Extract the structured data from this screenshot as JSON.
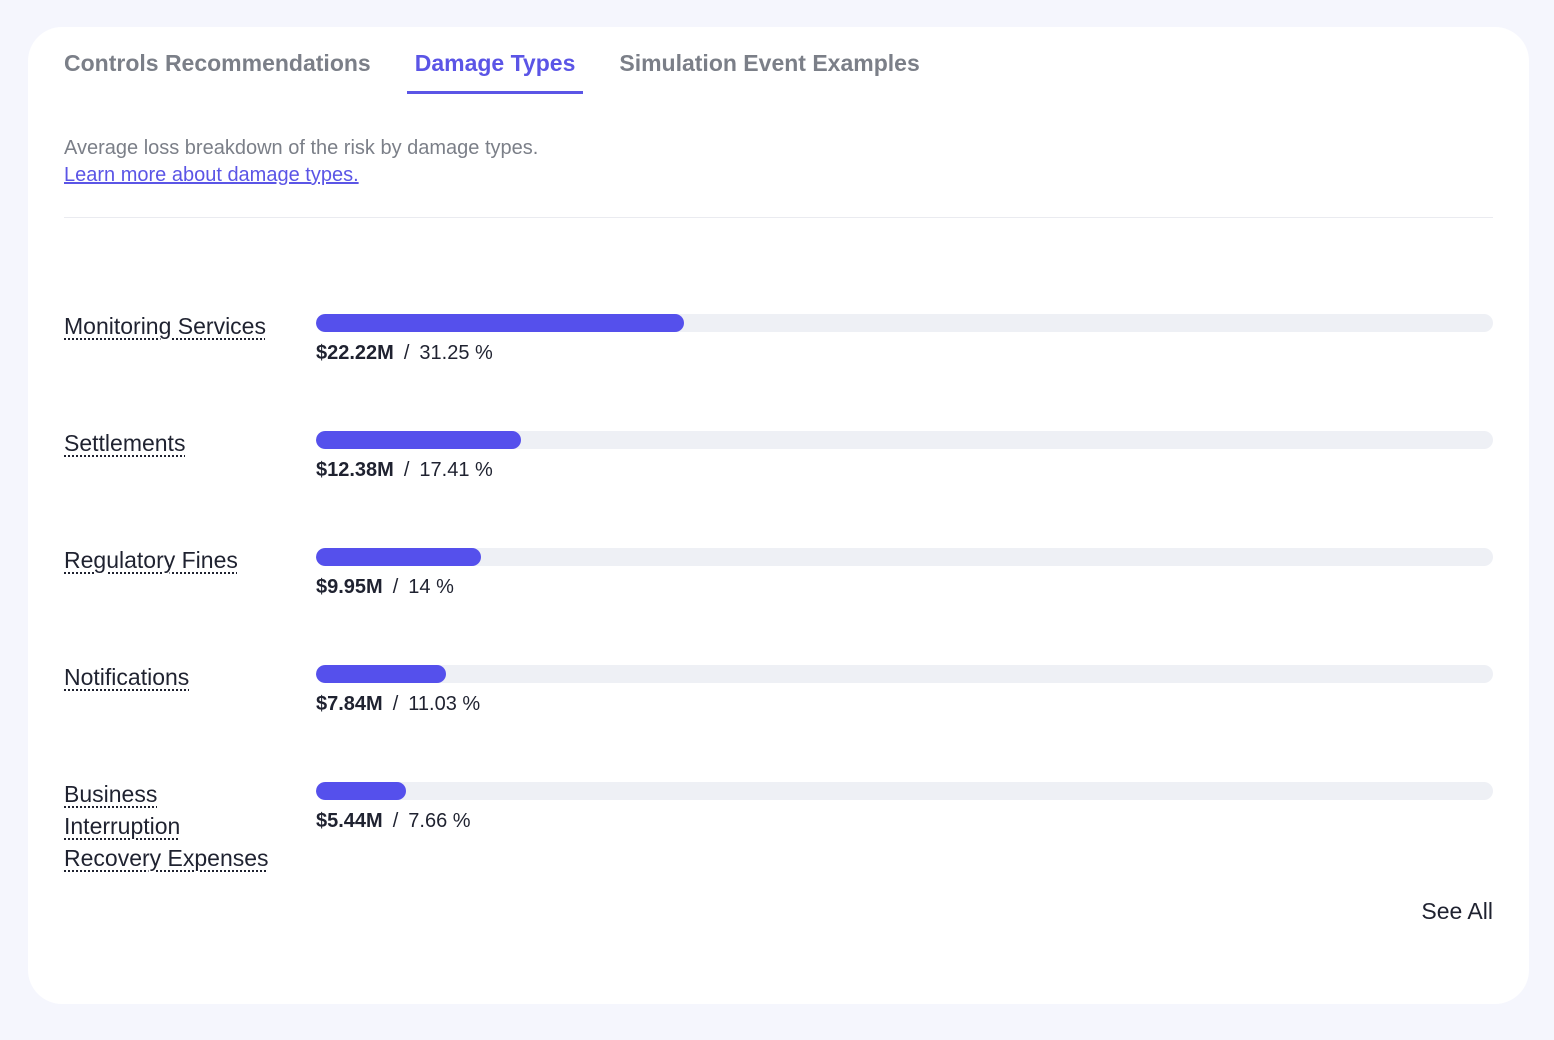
{
  "tabs": [
    {
      "label": "Controls Recommendations",
      "active": false
    },
    {
      "label": "Damage Types",
      "active": true
    },
    {
      "label": "Simulation Event Examples",
      "active": false
    }
  ],
  "description": "Average loss breakdown of the risk by damage types.",
  "learn_more_link": "Learn more about damage types.",
  "accent_color": "#5550ec",
  "damage_types": [
    {
      "label": "Monitoring Services",
      "amount": "$22.22M",
      "percent": "31.25 %",
      "fill_percent": 31.25
    },
    {
      "label": "Settlements",
      "amount": "$12.38M",
      "percent": "17.41 %",
      "fill_percent": 17.41
    },
    {
      "label": "Regulatory Fines",
      "amount": "$9.95M",
      "percent": "14 %",
      "fill_percent": 14
    },
    {
      "label": "Notifications",
      "amount": "$7.84M",
      "percent": "11.03 %",
      "fill_percent": 11.03
    },
    {
      "label": "Business Interruption Recovery Expenses",
      "amount": "$5.44M",
      "percent": "7.66 %",
      "fill_percent": 7.66
    }
  ],
  "see_all_label": "See All"
}
